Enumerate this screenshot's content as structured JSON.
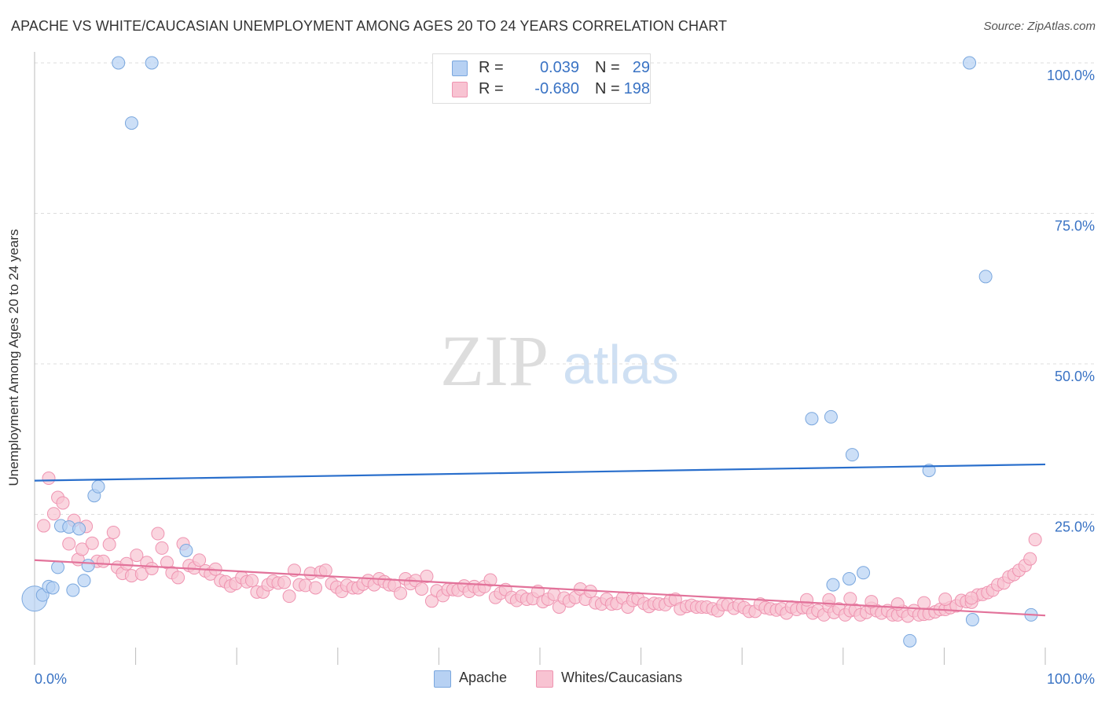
{
  "title": "APACHE VS WHITE/CAUCASIAN UNEMPLOYMENT AMONG AGES 20 TO 24 YEARS CORRELATION CHART",
  "source": "Source: ZipAtlas.com",
  "watermark": {
    "zip": "ZIP",
    "atlas": "atlas"
  },
  "legend_top": [
    {
      "r_label": "R =",
      "r_value": "0.039",
      "n_label": "N =",
      "n_value": "29"
    },
    {
      "r_label": "R =",
      "r_value": "-0.680",
      "n_label": "N =",
      "n_value": "198"
    }
  ],
  "legend_bottom": {
    "apache": "Apache",
    "white": "Whites/Caucasians"
  },
  "colors": {
    "apache_fill": "#b7d1f3",
    "apache_stroke": "#7aa7de",
    "apache_line": "#2a6fcc",
    "white_fill": "#f8c3d2",
    "white_stroke": "#ef94b1",
    "white_line": "#e2729a",
    "tick_label": "#3a73c4",
    "grid": "#dddddd"
  },
  "chart_data": {
    "type": "scatter",
    "title": "APACHE VS WHITE/CAUCASIAN UNEMPLOYMENT AMONG AGES 20 TO 24 YEARS CORRELATION CHART",
    "xlabel": "",
    "ylabel": "Unemployment Among Ages 20 to 24 years",
    "xlim": [
      0,
      100
    ],
    "ylim": [
      0,
      100
    ],
    "x_ticks": [
      {
        "value": 0,
        "label": "0.0%"
      },
      {
        "value": 100,
        "label": "100.0%"
      }
    ],
    "y_ticks": [
      {
        "value": 25,
        "label": "25.0%"
      },
      {
        "value": 50,
        "label": "50.0%"
      },
      {
        "value": 75,
        "label": "75.0%"
      },
      {
        "value": 100,
        "label": "100.0%"
      }
    ],
    "series": [
      {
        "name": "Apache",
        "r": 0.039,
        "n": 29,
        "trend": {
          "x": [
            0,
            100
          ],
          "y": [
            30.6,
            33.3
          ]
        },
        "points": [
          [
            0.0,
            11.0
          ],
          [
            0.8,
            11.6
          ],
          [
            1.4,
            13.0
          ],
          [
            1.8,
            12.8
          ],
          [
            2.3,
            16.2
          ],
          [
            2.6,
            23.1
          ],
          [
            3.4,
            22.9
          ],
          [
            3.8,
            12.4
          ],
          [
            4.4,
            22.6
          ],
          [
            4.9,
            14.0
          ],
          [
            5.3,
            16.5
          ],
          [
            5.9,
            28.1
          ],
          [
            6.3,
            29.6
          ],
          [
            8.3,
            100.0
          ],
          [
            9.6,
            90.0
          ],
          [
            11.6,
            100.0
          ],
          [
            15.0,
            19.0
          ],
          [
            76.9,
            40.9
          ],
          [
            78.8,
            41.2
          ],
          [
            79.0,
            13.3
          ],
          [
            80.6,
            14.3
          ],
          [
            80.9,
            34.9
          ],
          [
            82.0,
            15.3
          ],
          [
            86.6,
            4.0
          ],
          [
            88.5,
            32.3
          ],
          [
            92.5,
            100.0
          ],
          [
            92.8,
            7.5
          ],
          [
            94.1,
            64.5
          ],
          [
            98.6,
            8.3
          ]
        ]
      },
      {
        "name": "Whites/Caucasians",
        "r": -0.68,
        "n": 198,
        "trend": {
          "x": [
            0,
            100
          ],
          "y": [
            17.4,
            8.2
          ]
        },
        "points": [
          [
            0.9,
            23.1
          ],
          [
            1.4,
            31.0
          ],
          [
            1.9,
            25.1
          ],
          [
            2.3,
            27.8
          ],
          [
            2.8,
            26.9
          ],
          [
            3.4,
            20.1
          ],
          [
            3.9,
            24.0
          ],
          [
            4.3,
            17.5
          ],
          [
            4.7,
            19.2
          ],
          [
            5.1,
            23.0
          ],
          [
            5.7,
            20.2
          ],
          [
            6.2,
            17.2
          ],
          [
            6.8,
            17.2
          ],
          [
            7.4,
            20.0
          ],
          [
            7.8,
            22.0
          ],
          [
            8.2,
            16.2
          ],
          [
            8.7,
            15.2
          ],
          [
            9.1,
            16.8
          ],
          [
            9.6,
            14.8
          ],
          [
            10.1,
            18.2
          ],
          [
            10.6,
            15.1
          ],
          [
            11.1,
            17.0
          ],
          [
            11.6,
            16.0
          ],
          [
            12.2,
            21.8
          ],
          [
            12.6,
            19.4
          ],
          [
            13.1,
            17.0
          ],
          [
            13.6,
            15.3
          ],
          [
            14.2,
            14.5
          ],
          [
            14.7,
            20.1
          ],
          [
            15.3,
            16.5
          ],
          [
            15.8,
            16.1
          ],
          [
            16.3,
            17.4
          ],
          [
            16.9,
            15.6
          ],
          [
            17.4,
            15.1
          ],
          [
            17.9,
            15.9
          ],
          [
            18.4,
            14.0
          ],
          [
            18.9,
            13.8
          ],
          [
            19.4,
            13.1
          ],
          [
            19.9,
            13.5
          ],
          [
            20.5,
            14.5
          ],
          [
            21.0,
            13.8
          ],
          [
            21.5,
            14.0
          ],
          [
            22.0,
            12.1
          ],
          [
            22.6,
            12.1
          ],
          [
            23.1,
            13.3
          ],
          [
            23.6,
            13.9
          ],
          [
            24.1,
            13.6
          ],
          [
            24.7,
            13.7
          ],
          [
            25.2,
            11.4
          ],
          [
            25.7,
            15.7
          ],
          [
            26.2,
            13.3
          ],
          [
            26.8,
            13.2
          ],
          [
            27.3,
            15.2
          ],
          [
            27.8,
            12.8
          ],
          [
            28.3,
            15.4
          ],
          [
            28.8,
            15.7
          ],
          [
            29.4,
            13.5
          ],
          [
            29.9,
            12.9
          ],
          [
            30.4,
            12.2
          ],
          [
            30.9,
            13.2
          ],
          [
            31.5,
            12.8
          ],
          [
            32.0,
            12.8
          ],
          [
            32.5,
            13.4
          ],
          [
            33.0,
            14.0
          ],
          [
            33.6,
            13.3
          ],
          [
            34.1,
            14.3
          ],
          [
            34.6,
            13.8
          ],
          [
            35.1,
            13.3
          ],
          [
            35.6,
            13.2
          ],
          [
            36.2,
            11.9
          ],
          [
            36.7,
            14.3
          ],
          [
            37.2,
            13.5
          ],
          [
            37.7,
            14.0
          ],
          [
            38.3,
            12.6
          ],
          [
            38.8,
            14.7
          ],
          [
            39.3,
            10.6
          ],
          [
            39.8,
            12.3
          ],
          [
            40.4,
            11.5
          ],
          [
            40.9,
            12.5
          ],
          [
            41.4,
            12.5
          ],
          [
            41.9,
            12.4
          ],
          [
            42.5,
            13.1
          ],
          [
            43.0,
            12.2
          ],
          [
            43.5,
            13.0
          ],
          [
            44.0,
            12.5
          ],
          [
            44.5,
            13.0
          ],
          [
            45.1,
            14.1
          ],
          [
            45.6,
            11.2
          ],
          [
            46.1,
            11.9
          ],
          [
            46.6,
            12.5
          ],
          [
            47.2,
            11.2
          ],
          [
            47.7,
            10.7
          ],
          [
            48.2,
            11.4
          ],
          [
            48.7,
            10.9
          ],
          [
            49.3,
            11.0
          ],
          [
            49.8,
            12.2
          ],
          [
            50.3,
            10.5
          ],
          [
            50.8,
            10.9
          ],
          [
            51.4,
            11.7
          ],
          [
            51.9,
            9.6
          ],
          [
            52.4,
            11.1
          ],
          [
            52.9,
            10.6
          ],
          [
            53.5,
            11.2
          ],
          [
            54.0,
            12.6
          ],
          [
            54.5,
            10.9
          ],
          [
            55.0,
            12.2
          ],
          [
            55.5,
            10.3
          ],
          [
            56.1,
            10.1
          ],
          [
            56.6,
            10.9
          ],
          [
            57.1,
            10.1
          ],
          [
            57.6,
            10.2
          ],
          [
            58.2,
            11.1
          ],
          [
            58.7,
            9.6
          ],
          [
            59.2,
            10.7
          ],
          [
            59.7,
            11.0
          ],
          [
            60.3,
            10.2
          ],
          [
            60.8,
            9.7
          ],
          [
            61.3,
            10.2
          ],
          [
            61.8,
            10.1
          ],
          [
            62.4,
            10.0
          ],
          [
            62.9,
            10.7
          ],
          [
            63.4,
            10.9
          ],
          [
            63.9,
            9.3
          ],
          [
            64.5,
            9.7
          ],
          [
            65.0,
            9.9
          ],
          [
            65.5,
            9.6
          ],
          [
            66.0,
            9.6
          ],
          [
            66.5,
            9.6
          ],
          [
            67.1,
            9.3
          ],
          [
            67.6,
            9.0
          ],
          [
            68.1,
            10.0
          ],
          [
            68.6,
            10.0
          ],
          [
            69.2,
            9.4
          ],
          [
            69.7,
            9.9
          ],
          [
            70.2,
            9.5
          ],
          [
            70.7,
            8.9
          ],
          [
            71.3,
            8.9
          ],
          [
            71.8,
            10.1
          ],
          [
            72.3,
            9.5
          ],
          [
            72.8,
            9.3
          ],
          [
            73.4,
            9.1
          ],
          [
            73.9,
            9.3
          ],
          [
            74.4,
            8.6
          ],
          [
            74.9,
            9.6
          ],
          [
            75.4,
            9.2
          ],
          [
            76.0,
            9.5
          ],
          [
            76.5,
            9.5
          ],
          [
            77.0,
            8.6
          ],
          [
            77.5,
            9.0
          ],
          [
            78.1,
            8.3
          ],
          [
            78.6,
            9.7
          ],
          [
            79.1,
            8.7
          ],
          [
            79.6,
            9.3
          ],
          [
            80.2,
            8.3
          ],
          [
            80.7,
            9.0
          ],
          [
            81.2,
            9.1
          ],
          [
            81.7,
            8.3
          ],
          [
            82.3,
            8.7
          ],
          [
            82.8,
            9.4
          ],
          [
            83.3,
            9.0
          ],
          [
            83.8,
            8.6
          ],
          [
            84.4,
            9.0
          ],
          [
            84.9,
            8.3
          ],
          [
            85.4,
            8.3
          ],
          [
            85.9,
            8.9
          ],
          [
            86.4,
            8.1
          ],
          [
            87.0,
            9.0
          ],
          [
            87.5,
            8.3
          ],
          [
            88.0,
            8.4
          ],
          [
            88.5,
            8.5
          ],
          [
            89.1,
            8.8
          ],
          [
            89.6,
            9.2
          ],
          [
            90.1,
            9.2
          ],
          [
            90.6,
            9.5
          ],
          [
            91.2,
            9.8
          ],
          [
            91.7,
            10.7
          ],
          [
            92.2,
            10.5
          ],
          [
            92.7,
            10.4
          ],
          [
            93.3,
            11.6
          ],
          [
            93.8,
            11.7
          ],
          [
            94.3,
            12.0
          ],
          [
            94.8,
            12.4
          ],
          [
            95.3,
            13.3
          ],
          [
            95.9,
            13.6
          ],
          [
            96.4,
            14.6
          ],
          [
            96.9,
            15.0
          ],
          [
            97.4,
            15.7
          ],
          [
            98.0,
            16.5
          ],
          [
            98.5,
            17.6
          ],
          [
            99.0,
            20.8
          ],
          [
            76.4,
            10.8
          ],
          [
            78.6,
            10.8
          ],
          [
            80.7,
            11.0
          ],
          [
            82.8,
            10.5
          ],
          [
            85.4,
            10.1
          ],
          [
            88.0,
            10.3
          ],
          [
            90.1,
            10.9
          ],
          [
            92.7,
            11.1
          ]
        ]
      }
    ]
  }
}
